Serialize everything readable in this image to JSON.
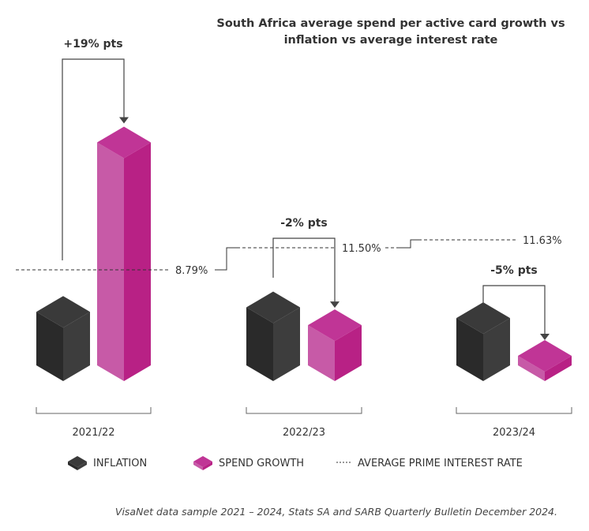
{
  "chart_data": {
    "type": "bar",
    "title": "South Africa average spend per active card growth vs inflation vs average interest rate",
    "categories": [
      "2021/22",
      "2022/23",
      "2023/24"
    ],
    "series": [
      {
        "name": "INFLATION",
        "color": "#2e2e2e",
        "values": [
          6.0,
          6.5,
          5.3
        ]
      },
      {
        "name": "SPEND GROWTH",
        "color": "#c0288f",
        "values": [
          25,
          4.5,
          0.3
        ]
      }
    ],
    "line_series": {
      "name": "AVERAGE PRIME INTEREST RATE",
      "style": "dashed",
      "values": [
        8.79,
        11.5,
        11.63
      ],
      "labels": [
        "8.79%",
        "11.50%",
        "11.63%"
      ]
    },
    "annotations": [
      "+19% pts",
      "-2% pts",
      "-5% pts"
    ],
    "legend": [
      "INFLATION",
      "SPEND GROWTH",
      "AVERAGE PRIME INTEREST RATE"
    ],
    "legend_position": "bottom",
    "grid": false,
    "xlabel": "",
    "ylabel": ""
  },
  "footnote": "VisaNet data sample 2021 – 2024, Stats SA and SARB Quarterly Bulletin December 2024."
}
